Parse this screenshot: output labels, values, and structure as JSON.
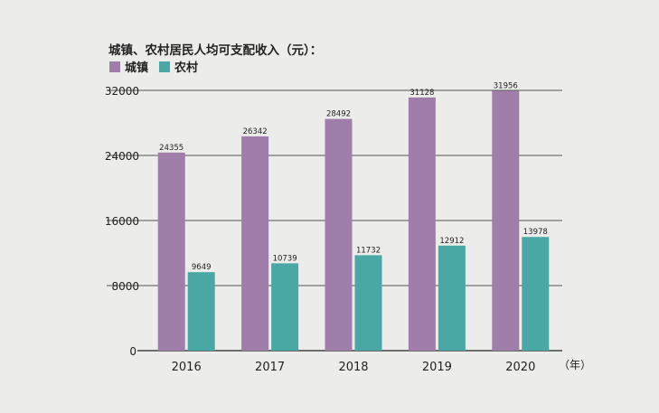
{
  "chart_data": {
    "type": "bar",
    "title": "城镇、农村居民人均可支配收入（元）：",
    "categories": [
      "2016",
      "2017",
      "2018",
      "2019",
      "2020"
    ],
    "series": [
      {
        "name": "城镇",
        "color": "#a07eaa",
        "values": [
          24355,
          26342,
          28492,
          31128,
          31956
        ]
      },
      {
        "name": "农村",
        "color": "#4aa8a4",
        "values": [
          9649,
          10739,
          11732,
          12912,
          13978
        ]
      }
    ],
    "yticks": [
      0,
      8000,
      16000,
      24000,
      32000
    ],
    "ylim": [
      0,
      32000
    ],
    "xunit": "（年）",
    "xlabel": "",
    "ylabel": "",
    "grid": true,
    "legend": "top-left"
  }
}
